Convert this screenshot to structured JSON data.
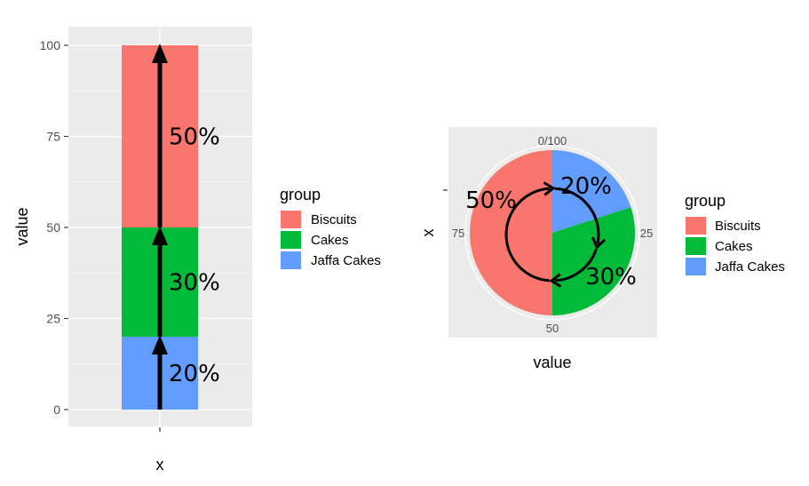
{
  "colors": {
    "Biscuits": "#F8766D",
    "Cakes": "#00BA38",
    "Jaffa Cakes": "#619CFF",
    "panel": "#EBEBEB",
    "grid": "#FFFFFF",
    "arrow": "#000000"
  },
  "chart_data": [
    {
      "type": "bar",
      "stacked": true,
      "categories": [
        ""
      ],
      "series": [
        {
          "name": "Jaffa Cakes",
          "values": [
            20
          ]
        },
        {
          "name": "Cakes",
          "values": [
            30
          ]
        },
        {
          "name": "Biscuits",
          "values": [
            50
          ]
        }
      ],
      "xlabel": "x",
      "ylabel": "value",
      "ylim": [
        0,
        100
      ],
      "yticks": [
        "0",
        "25",
        "50",
        "75",
        "100"
      ],
      "annotations": [
        "20%",
        "30%",
        "50%"
      ],
      "legend": {
        "title": "group",
        "entries": [
          "Biscuits",
          "Cakes",
          "Jaffa Cakes"
        ],
        "placement": "right"
      },
      "grid": true
    },
    {
      "type": "pie",
      "series": [
        {
          "name": "Jaffa Cakes",
          "values": [
            20
          ]
        },
        {
          "name": "Cakes",
          "values": [
            30
          ]
        },
        {
          "name": "Biscuits",
          "values": [
            50
          ]
        }
      ],
      "xlabel": "value",
      "ylabel": "x",
      "angle_ticks": [
        "0/100",
        "25",
        "50",
        "75"
      ],
      "annotations": [
        "20%",
        "30%",
        "50%"
      ],
      "legend": {
        "title": "group",
        "entries": [
          "Biscuits",
          "Cakes",
          "Jaffa Cakes"
        ],
        "placement": "right"
      },
      "grid": true
    }
  ]
}
